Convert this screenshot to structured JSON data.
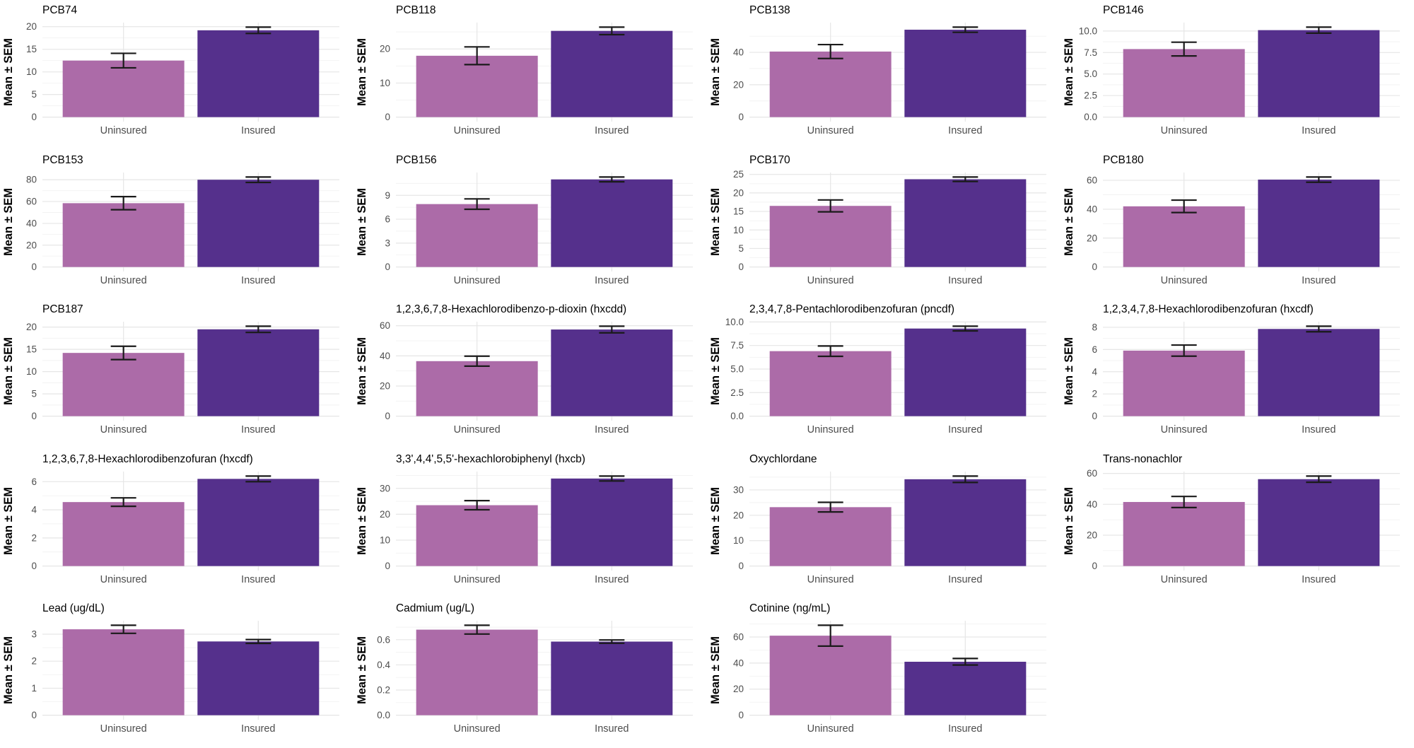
{
  "figure": {
    "background": "#FFFFFF",
    "ylabel": "Mean ± SEM",
    "categories": [
      "Uninsured",
      "Insured"
    ],
    "colors": {
      "uninsured_bar": "#AC6BA8",
      "insured_bar": "#55308C",
      "error_bar": "#1A1A1A",
      "grid_major": "#E6E6E6",
      "grid_minor": "#F2F2F2",
      "tick_text": "#4D4D4D",
      "title_text": "#000000",
      "axis_label_text": "#000000"
    }
  },
  "chart_data": {
    "type": "bar",
    "layout": "facet-grid-4x5",
    "grid": true,
    "legend": "none",
    "categories": [
      "Uninsured",
      "Insured"
    ],
    "ylabel": "Mean ± SEM",
    "error_bars": "SEM",
    "panels": [
      {
        "title": "PCB74",
        "ticks": [
          "0",
          "5",
          "10",
          "15",
          "20"
        ],
        "series": [
          {
            "name": "Uninsured",
            "mean": 12.5,
            "sem": 1.6
          },
          {
            "name": "Insured",
            "mean": 19.2,
            "sem": 0.7
          }
        ]
      },
      {
        "title": "PCB118",
        "ticks": [
          "0",
          "10",
          "20"
        ],
        "series": [
          {
            "name": "Uninsured",
            "mean": 18.0,
            "sem": 2.6
          },
          {
            "name": "Insured",
            "mean": 25.3,
            "sem": 1.1
          }
        ]
      },
      {
        "title": "PCB138",
        "ticks": [
          "0",
          "20",
          "40"
        ],
        "series": [
          {
            "name": "Uninsured",
            "mean": 40.5,
            "sem": 4.3
          },
          {
            "name": "Insured",
            "mean": 54.0,
            "sem": 1.6
          }
        ]
      },
      {
        "title": "PCB146",
        "ticks": [
          "0.0",
          "2.5",
          "5.0",
          "7.5",
          "10.0"
        ],
        "series": [
          {
            "name": "Uninsured",
            "mean": 7.9,
            "sem": 0.8
          },
          {
            "name": "Insured",
            "mean": 10.1,
            "sem": 0.35
          }
        ]
      },
      {
        "title": "PCB153",
        "ticks": [
          "0",
          "20",
          "40",
          "60",
          "80"
        ],
        "series": [
          {
            "name": "Uninsured",
            "mean": 58.5,
            "sem": 6.0
          },
          {
            "name": "Insured",
            "mean": 80.0,
            "sem": 2.5
          }
        ]
      },
      {
        "title": "PCB156",
        "ticks": [
          "0",
          "3",
          "6",
          "9"
        ],
        "series": [
          {
            "name": "Uninsured",
            "mean": 7.9,
            "sem": 0.65
          },
          {
            "name": "Insured",
            "mean": 11.0,
            "sem": 0.3
          }
        ]
      },
      {
        "title": "PCB170",
        "ticks": [
          "0",
          "5",
          "10",
          "15",
          "20",
          "25"
        ],
        "series": [
          {
            "name": "Uninsured",
            "mean": 16.5,
            "sem": 1.6
          },
          {
            "name": "Insured",
            "mean": 23.7,
            "sem": 0.6
          }
        ]
      },
      {
        "title": "PCB180",
        "ticks": [
          "0",
          "20",
          "40",
          "60"
        ],
        "series": [
          {
            "name": "Uninsured",
            "mean": 42.0,
            "sem": 4.3
          },
          {
            "name": "Insured",
            "mean": 60.5,
            "sem": 1.8
          }
        ]
      },
      {
        "title": "PCB187",
        "ticks": [
          "0",
          "5",
          "10",
          "15",
          "20"
        ],
        "series": [
          {
            "name": "Uninsured",
            "mean": 14.2,
            "sem": 1.5
          },
          {
            "name": "Insured",
            "mean": 19.5,
            "sem": 0.7
          }
        ]
      },
      {
        "title": "1,2,3,6,7,8-Hexachlorodibenzo-p-dioxin (hxcdd)",
        "ticks": [
          "0",
          "20",
          "40",
          "60"
        ],
        "series": [
          {
            "name": "Uninsured",
            "mean": 36.5,
            "sem": 3.3
          },
          {
            "name": "Insured",
            "mean": 57.5,
            "sem": 2.2
          }
        ]
      },
      {
        "title": "2,3,4,7,8-Pentachlorodibenzofuran (pncdf)",
        "ticks": [
          "0.0",
          "2.5",
          "5.0",
          "7.5",
          "10.0"
        ],
        "series": [
          {
            "name": "Uninsured",
            "mean": 6.9,
            "sem": 0.55
          },
          {
            "name": "Insured",
            "mean": 9.3,
            "sem": 0.25
          }
        ]
      },
      {
        "title": "1,2,3,4,7,8-Hexachlorodibenzofuran (hxcdf)",
        "ticks": [
          "0",
          "2",
          "4",
          "6",
          "8"
        ],
        "series": [
          {
            "name": "Uninsured",
            "mean": 5.9,
            "sem": 0.5
          },
          {
            "name": "Insured",
            "mean": 7.85,
            "sem": 0.25
          }
        ]
      },
      {
        "title": "1,2,3,6,7,8-Hexachlorodibenzofuran (hxcdf)",
        "ticks": [
          "0",
          "2",
          "4",
          "6"
        ],
        "series": [
          {
            "name": "Uninsured",
            "mean": 4.55,
            "sem": 0.3
          },
          {
            "name": "Insured",
            "mean": 6.2,
            "sem": 0.2
          }
        ]
      },
      {
        "title": "3,3',4,4',5,5'-hexachlorobiphenyl (hxcb)",
        "ticks": [
          "0",
          "10",
          "20",
          "30"
        ],
        "series": [
          {
            "name": "Uninsured",
            "mean": 23.5,
            "sem": 1.75
          },
          {
            "name": "Insured",
            "mean": 33.8,
            "sem": 0.95
          }
        ]
      },
      {
        "title": "Oxychlordane",
        "ticks": [
          "0",
          "10",
          "20",
          "30"
        ],
        "series": [
          {
            "name": "Uninsured",
            "mean": 23.2,
            "sem": 1.9
          },
          {
            "name": "Insured",
            "mean": 34.2,
            "sem": 1.25
          }
        ]
      },
      {
        "title": "Trans-nonachlor",
        "ticks": [
          "0",
          "20",
          "40",
          "60"
        ],
        "series": [
          {
            "name": "Uninsured",
            "mean": 41.5,
            "sem": 3.6
          },
          {
            "name": "Insured",
            "mean": 56.3,
            "sem": 2.0
          }
        ]
      },
      {
        "title": "Lead (ug/dL)",
        "ticks": [
          "0",
          "1",
          "2",
          "3"
        ],
        "series": [
          {
            "name": "Uninsured",
            "mean": 3.18,
            "sem": 0.15
          },
          {
            "name": "Insured",
            "mean": 2.73,
            "sem": 0.07
          }
        ]
      },
      {
        "title": "Cadmium (ug/L)",
        "ticks": [
          "0.0",
          "0.2",
          "0.4",
          "0.6"
        ],
        "series": [
          {
            "name": "Uninsured",
            "mean": 0.68,
            "sem": 0.035
          },
          {
            "name": "Insured",
            "mean": 0.585,
            "sem": 0.013
          }
        ]
      },
      {
        "title": "Cotinine (ng/mL)",
        "ticks": [
          "0",
          "20",
          "40",
          "60"
        ],
        "series": [
          {
            "name": "Uninsured",
            "mean": 61.0,
            "sem": 8.0
          },
          {
            "name": "Insured",
            "mean": 41.0,
            "sem": 2.5
          }
        ]
      }
    ]
  }
}
